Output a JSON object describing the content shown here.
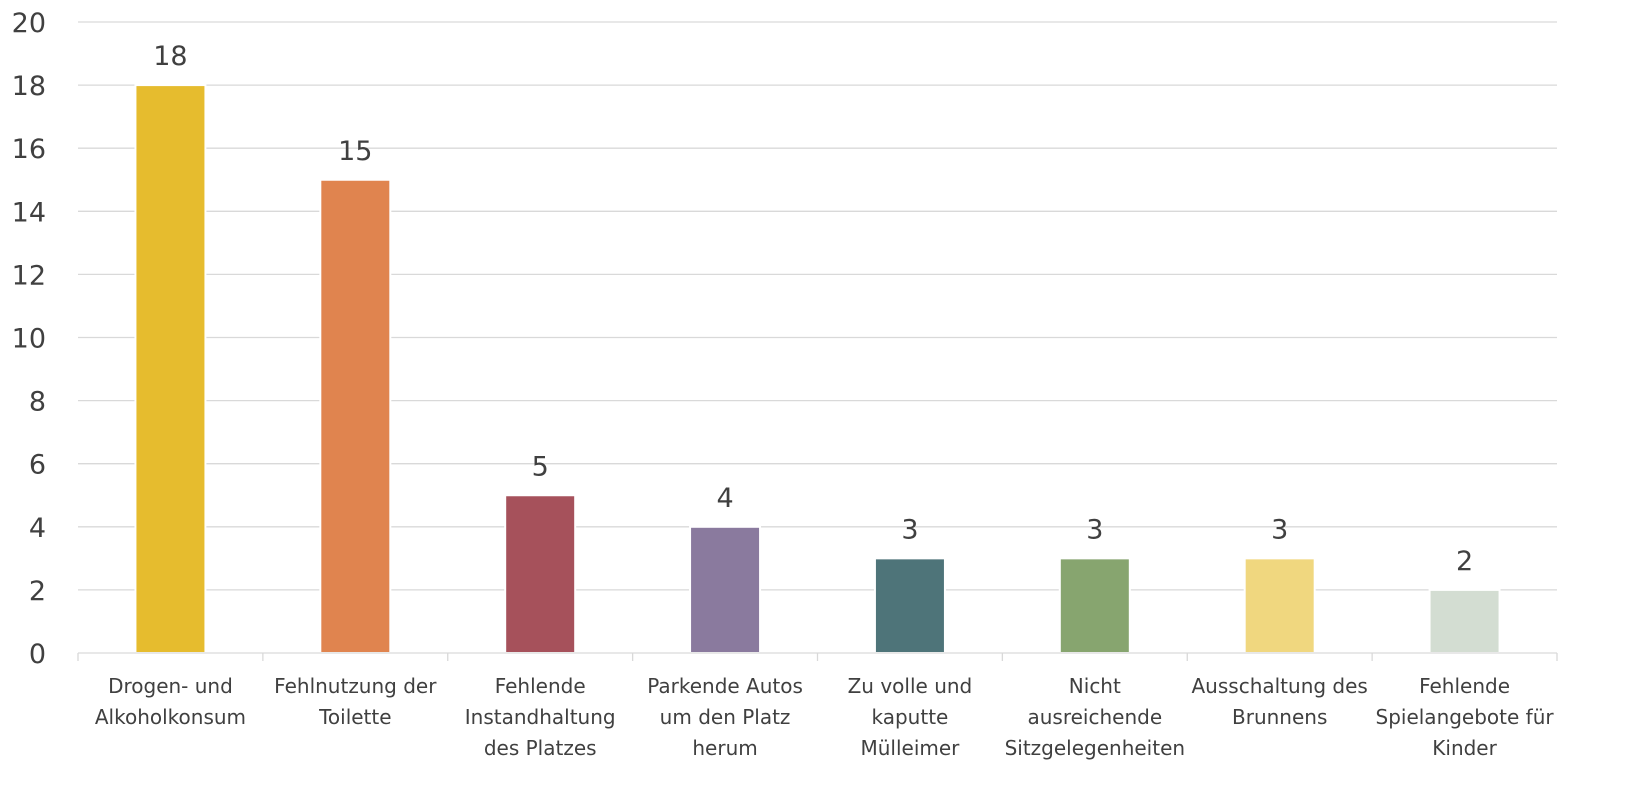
{
  "chart_data": {
    "type": "bar",
    "title": "",
    "xlabel": "",
    "ylabel": "",
    "ylim": [
      0,
      20
    ],
    "ytick_step": 2,
    "grid": true,
    "legend": "none",
    "categories": [
      [
        "Drogen- und",
        "Alkoholkonsum"
      ],
      [
        "Fehlnutzung der",
        "Toilette"
      ],
      [
        "Fehlende",
        "Instandhaltung",
        "des Platzes"
      ],
      [
        "Parkende Autos",
        "um den Platz",
        "herum"
      ],
      [
        "Zu volle und",
        "kaputte",
        "Mülleimer"
      ],
      [
        "Nicht",
        "ausreichende",
        "Sitzgelegenheiten"
      ],
      [
        "Ausschaltung des",
        "Brunnens"
      ],
      [
        "Fehlende",
        "Spielangebote für",
        "Kinder"
      ]
    ],
    "values": [
      18,
      15,
      5,
      4,
      3,
      3,
      3,
      2
    ],
    "colors": [
      "#E6BC2E",
      "#E0844F",
      "#A6515B",
      "#8A7A9E",
      "#4E7479",
      "#87A56F",
      "#F0D77F",
      "#D3DDD2"
    ]
  }
}
